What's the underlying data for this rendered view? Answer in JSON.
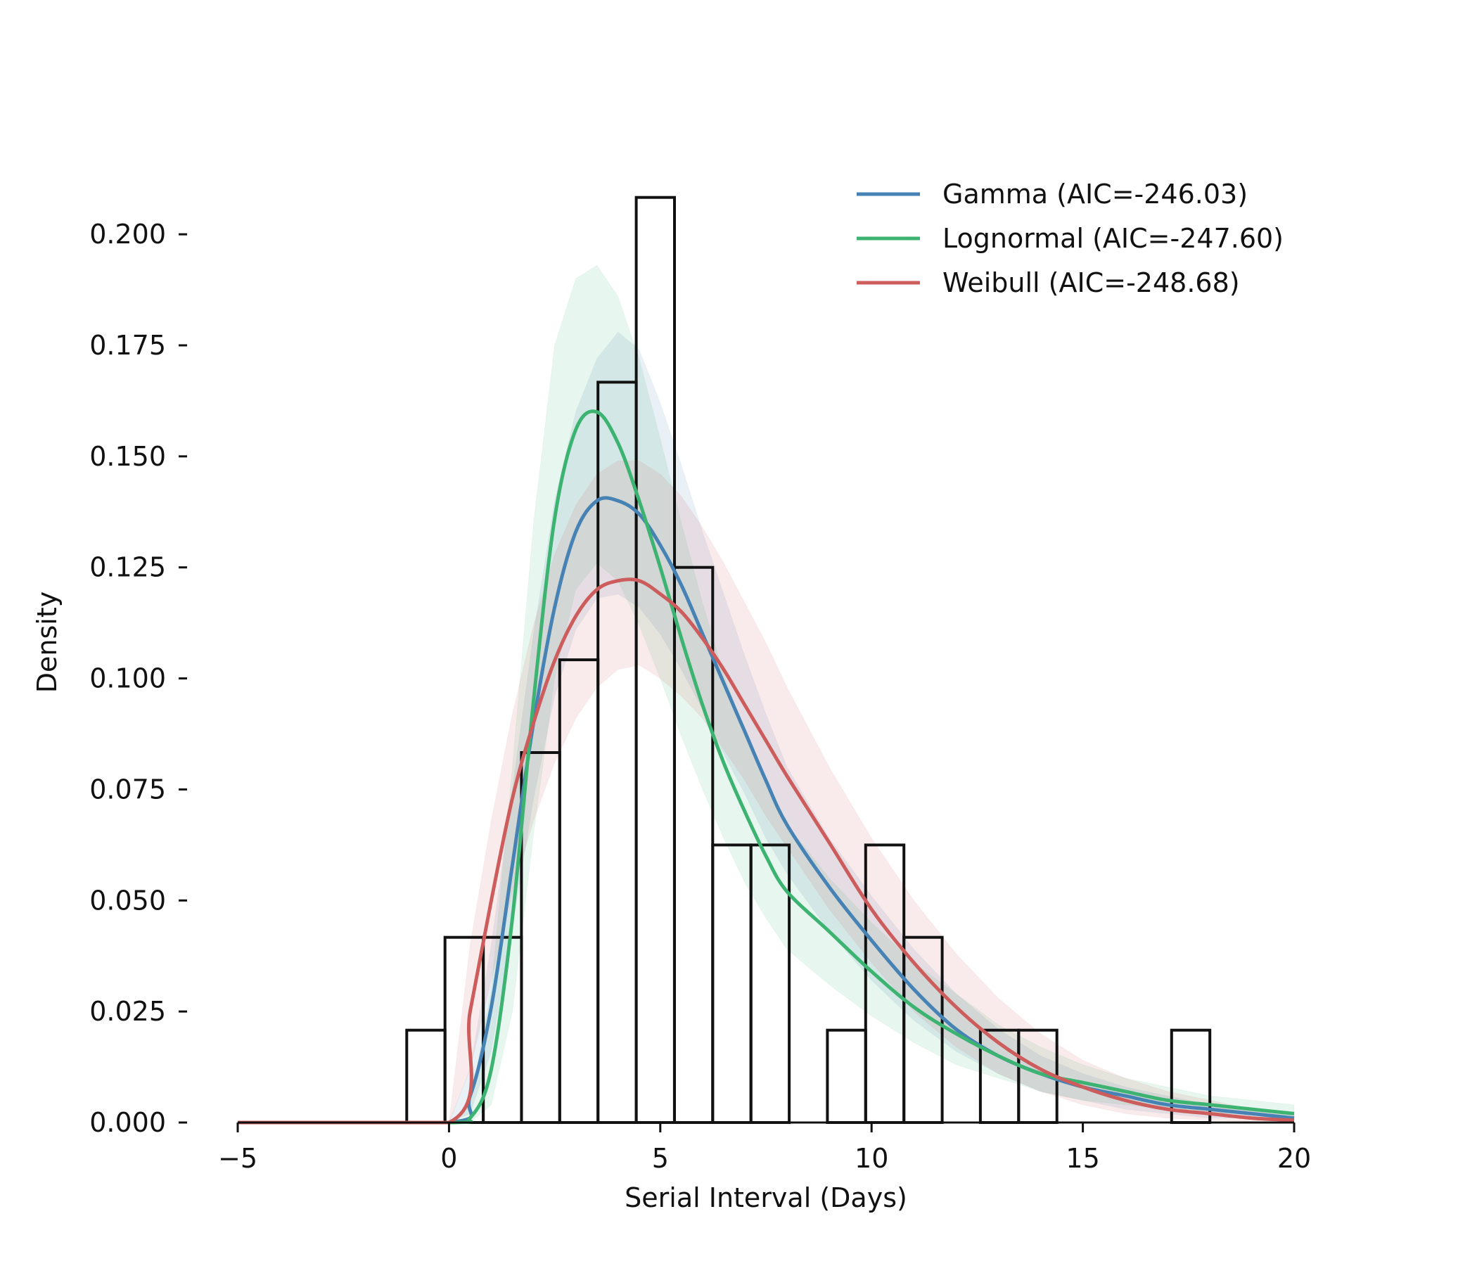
{
  "chart_data": {
    "type": "bar",
    "title": "",
    "xlabel": "Serial Interval (Days)",
    "ylabel": "Density",
    "xlim": [
      -5,
      20
    ],
    "ylim": [
      0,
      0.21
    ],
    "x_ticks": [
      -5,
      0,
      5,
      10,
      15,
      20
    ],
    "x_tick_labels": [
      "−5",
      "0",
      "5",
      "10",
      "15",
      "20"
    ],
    "y_ticks": [
      0,
      0.025,
      0.05,
      0.075,
      0.1,
      0.125,
      0.15,
      0.175,
      0.2
    ],
    "y_tick_labels": [
      "0.000",
      "0.025",
      "0.050",
      "0.075",
      "0.100",
      "0.125",
      "0.150",
      "0.175",
      "0.200"
    ],
    "grid": false,
    "legend_position": "top-right",
    "histogram": {
      "bin_edges": [
        -1.0,
        -0.095,
        0.81,
        1.715,
        2.62,
        3.525,
        4.43,
        5.335,
        6.24,
        7.145,
        8.05,
        8.955,
        9.86,
        10.765,
        11.67,
        12.575,
        13.48,
        14.385,
        15.29,
        16.195,
        17.1,
        18.005
      ],
      "densities": [
        0.0208,
        0.0417,
        0.0417,
        0.0833,
        0.1042,
        0.1667,
        0.2083,
        0.125,
        0.0625,
        0.0625,
        0,
        0.0208,
        0.0625,
        0.0417,
        0,
        0.0208,
        0.0208,
        0,
        0,
        0,
        0.0208
      ],
      "edge_color": "#111111",
      "fill_color": "#ffffff"
    },
    "series": [
      {
        "name": "Gamma (AIC=-246.03)",
        "color": "#4682b4",
        "distribution": "gamma",
        "curve_x": [
          -5,
          0,
          0.5,
          1,
          1.5,
          2,
          2.5,
          3,
          3.5,
          4,
          4.5,
          5,
          5.5,
          6,
          6.5,
          7,
          7.5,
          8,
          9,
          10,
          11,
          12,
          13,
          14,
          15,
          16,
          17,
          18,
          19,
          20
        ],
        "curve_y": [
          0,
          0,
          0.006,
          0.026,
          0.058,
          0.09,
          0.116,
          0.133,
          0.14,
          0.14,
          0.137,
          0.13,
          0.121,
          0.11,
          0.099,
          0.088,
          0.077,
          0.067,
          0.053,
          0.041,
          0.03,
          0.021,
          0.015,
          0.011,
          0.008,
          0.006,
          0.004,
          0.003,
          0.002,
          0.001
        ],
        "band_lower": [
          0,
          0,
          0.002,
          0.016,
          0.044,
          0.073,
          0.096,
          0.111,
          0.118,
          0.119,
          0.116,
          0.11,
          0.102,
          0.093,
          0.083,
          0.074,
          0.064,
          0.056,
          0.043,
          0.032,
          0.023,
          0.016,
          0.011,
          0.007,
          0.005,
          0.003,
          0.002,
          0.001,
          0.001,
          0.0005
        ],
        "band_upper": [
          0,
          0,
          0.012,
          0.04,
          0.075,
          0.11,
          0.14,
          0.16,
          0.172,
          0.178,
          0.174,
          0.162,
          0.148,
          0.133,
          0.119,
          0.105,
          0.092,
          0.08,
          0.064,
          0.051,
          0.039,
          0.029,
          0.021,
          0.015,
          0.011,
          0.008,
          0.006,
          0.004,
          0.003,
          0.002
        ]
      },
      {
        "name": "Lognormal (AIC=-247.60)",
        "color": "#3cb371",
        "distribution": "lognormal",
        "curve_x": [
          -5,
          0,
          0.5,
          1,
          1.5,
          2,
          2.5,
          3,
          3.5,
          4,
          4.5,
          5,
          5.5,
          6,
          6.5,
          7,
          7.5,
          8,
          9,
          10,
          11,
          12,
          13,
          14,
          15,
          16,
          17,
          18,
          19,
          20
        ],
        "curve_y": [
          0,
          0,
          0.001,
          0.012,
          0.046,
          0.095,
          0.136,
          0.156,
          0.16,
          0.153,
          0.14,
          0.125,
          0.109,
          0.094,
          0.081,
          0.07,
          0.06,
          0.052,
          0.043,
          0.034,
          0.026,
          0.02,
          0.015,
          0.011,
          0.009,
          0.007,
          0.005,
          0.004,
          0.003,
          0.002
        ],
        "band_lower": [
          0,
          0,
          0,
          0.004,
          0.025,
          0.065,
          0.1,
          0.12,
          0.126,
          0.122,
          0.112,
          0.1,
          0.087,
          0.075,
          0.064,
          0.054,
          0.046,
          0.039,
          0.031,
          0.024,
          0.018,
          0.013,
          0.01,
          0.007,
          0.005,
          0.004,
          0.003,
          0.002,
          0.002,
          0.001
        ],
        "band_upper": [
          0,
          0,
          0.004,
          0.03,
          0.08,
          0.135,
          0.175,
          0.19,
          0.193,
          0.186,
          0.172,
          0.154,
          0.135,
          0.117,
          0.101,
          0.088,
          0.077,
          0.067,
          0.055,
          0.045,
          0.036,
          0.029,
          0.022,
          0.017,
          0.013,
          0.01,
          0.008,
          0.006,
          0.005,
          0.004
        ]
      },
      {
        "name": "Weibull (AIC=-248.68)",
        "color": "#cd5c5c",
        "distribution": "weibull",
        "curve_x": [
          -5,
          0,
          0.5,
          1,
          1.5,
          2,
          2.5,
          3,
          3.5,
          4,
          4.5,
          5,
          5.5,
          6,
          6.5,
          7,
          7.5,
          8,
          9,
          10,
          11,
          12,
          13,
          14,
          15,
          16,
          17,
          18,
          19,
          20
        ],
        "curve_y": [
          0,
          0,
          0.025,
          0.05,
          0.073,
          0.09,
          0.104,
          0.114,
          0.12,
          0.122,
          0.122,
          0.119,
          0.115,
          0.109,
          0.102,
          0.094,
          0.086,
          0.078,
          0.063,
          0.048,
          0.036,
          0.026,
          0.018,
          0.012,
          0.008,
          0.005,
          0.003,
          0.002,
          0.001,
          0.0005
        ],
        "band_lower": [
          0,
          0,
          0.012,
          0.032,
          0.052,
          0.068,
          0.081,
          0.091,
          0.098,
          0.102,
          0.103,
          0.1,
          0.096,
          0.091,
          0.084,
          0.077,
          0.069,
          0.062,
          0.048,
          0.036,
          0.025,
          0.017,
          0.011,
          0.007,
          0.004,
          0.002,
          0.001,
          0.0005,
          0.0002,
          0.0001
        ],
        "band_upper": [
          0,
          0,
          0.04,
          0.068,
          0.092,
          0.112,
          0.128,
          0.139,
          0.146,
          0.149,
          0.149,
          0.146,
          0.141,
          0.134,
          0.126,
          0.117,
          0.108,
          0.098,
          0.08,
          0.064,
          0.05,
          0.038,
          0.028,
          0.02,
          0.014,
          0.01,
          0.007,
          0.005,
          0.003,
          0.002
        ]
      }
    ]
  }
}
